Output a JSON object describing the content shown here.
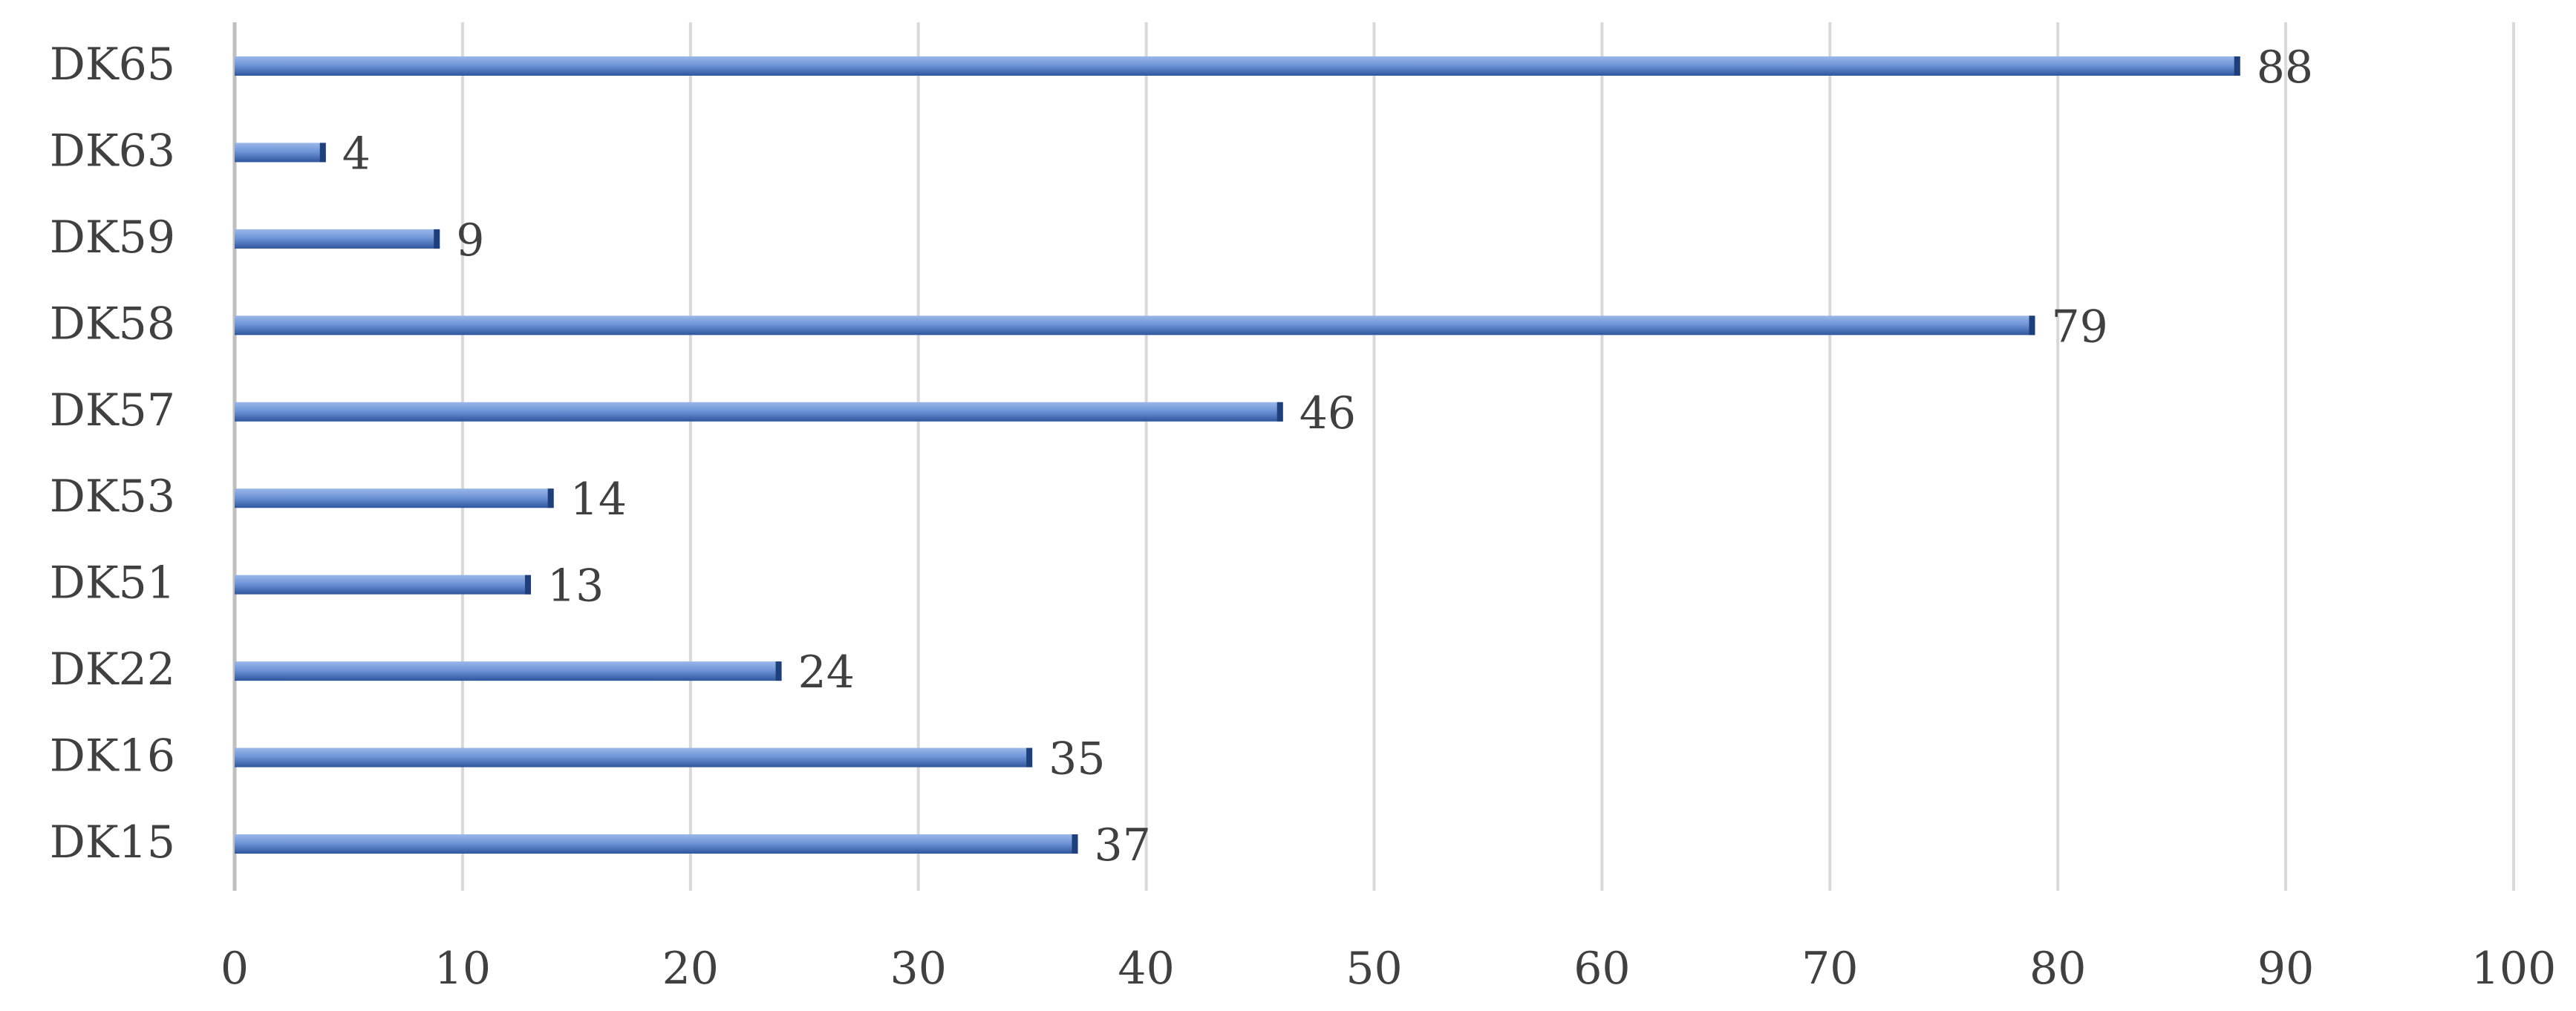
{
  "chart_data": {
    "type": "bar",
    "orientation": "horizontal",
    "title": "",
    "xlabel": "",
    "ylabel": "",
    "categories": [
      "DK65",
      "DK63",
      "DK59",
      "DK58",
      "DK57",
      "DK53",
      "DK51",
      "DK22",
      "DK16",
      "DK15"
    ],
    "values": [
      88,
      4,
      9,
      79,
      46,
      14,
      13,
      24,
      35,
      37
    ],
    "xlim": [
      0,
      100
    ],
    "xticks": [
      0,
      10,
      20,
      30,
      40,
      50,
      60,
      70,
      80,
      90,
      100
    ],
    "grid": "vertical",
    "legend": "none",
    "bar_color": "#4472c4"
  }
}
